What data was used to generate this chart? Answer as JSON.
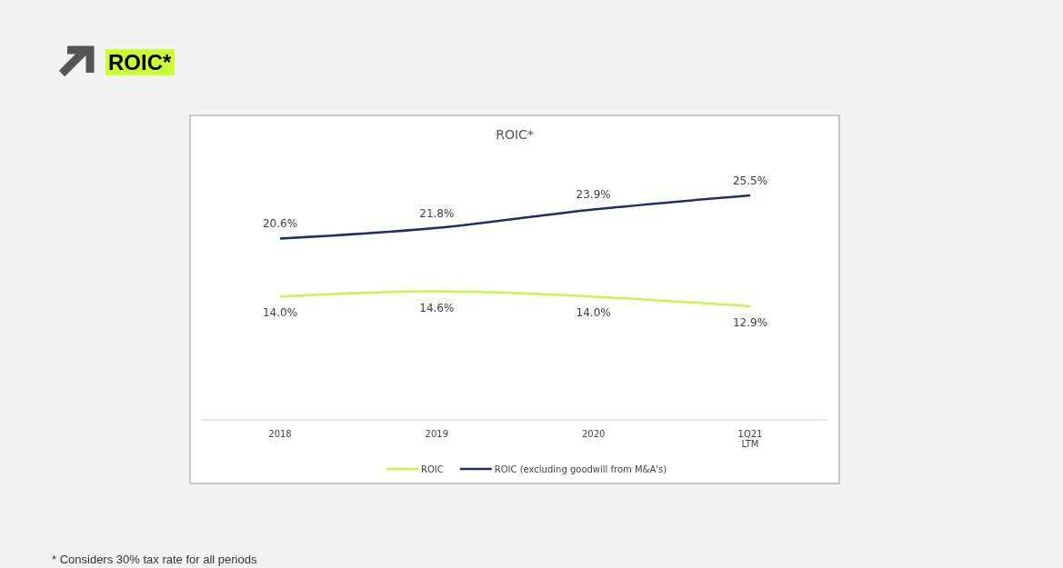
{
  "chart_data": {
    "type": "line",
    "title": "ROIC*",
    "subtitle": "ROIC*",
    "categories": [
      "2018",
      "2019",
      "2020",
      "1Q21\nLTM"
    ],
    "series": [
      {
        "name": "ROIC",
        "color": "#c8f54a",
        "values": [
          14.0,
          14.6,
          14.0,
          12.9
        ],
        "value_labels": [
          "14.0%",
          "14.6%",
          "14.0%",
          "12.9%"
        ]
      },
      {
        "name": "ROIC (excluding goodwill from M&A's)",
        "color": "#1f2d6b",
        "values": [
          20.6,
          21.8,
          23.9,
          25.5
        ],
        "value_labels": [
          "20.6%",
          "21.8%",
          "23.9%",
          "25.5%"
        ]
      }
    ],
    "tick_labels": "x",
    "legend": "bottom",
    "marker": "none",
    "line_style": "solid",
    "annotations": [
      "* Considers 30% tax rate for all periods"
    ]
  }
}
